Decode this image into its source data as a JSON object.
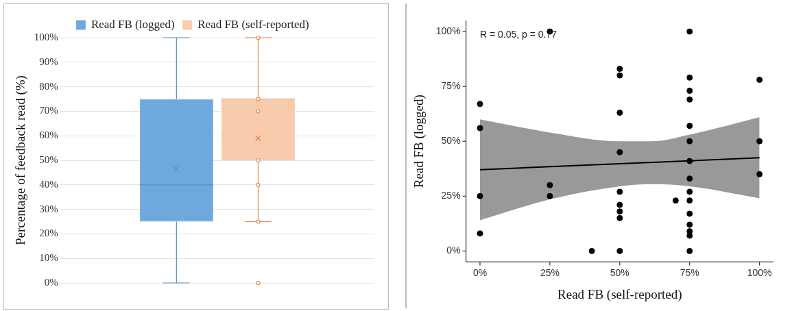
{
  "chart_data": [
    {
      "type": "box",
      "categories": [
        null
      ],
      "ylabel": "Percentage of feedback read (%)",
      "ylim": [
        0,
        100
      ],
      "yticks": [
        {
          "value": 0,
          "label": "0%"
        },
        {
          "value": 10,
          "label": "10%"
        },
        {
          "value": 20,
          "label": "20%"
        },
        {
          "value": 30,
          "label": "30%"
        },
        {
          "value": 40,
          "label": "40%"
        },
        {
          "value": 50,
          "label": "50%"
        },
        {
          "value": 60,
          "label": "60%"
        },
        {
          "value": 70,
          "label": "70%"
        },
        {
          "value": 80,
          "label": "80%"
        },
        {
          "value": 90,
          "label": "90%"
        },
        {
          "value": 100,
          "label": "100%"
        }
      ],
      "grid": "y",
      "legend": "top",
      "tick_labels": "y",
      "series": [
        {
          "name": "Read FB (logged)",
          "color": "#6fa8dc",
          "boxes": [
            {
              "low": 0,
              "q1": 25,
              "median": 40,
              "q3": 75,
              "high": 100,
              "mean": 46.5
            }
          ]
        },
        {
          "name": "Read FB (self-reported)",
          "color": "#f8cbad",
          "boxes": [
            {
              "low": 25,
              "q1": 50,
              "median": 75,
              "q3": 75,
              "high": 100,
              "mean": 59,
              "outliers": [
                100,
                75,
                70,
                50,
                40,
                25,
                0
              ]
            }
          ]
        }
      ]
    },
    {
      "type": "scatter",
      "xlabel": "Read FB (self-reported)",
      "ylabel": "Read FB (logged)",
      "xlim": [
        -5,
        105
      ],
      "ylim": [
        -5,
        105
      ],
      "xticks": [
        {
          "value": 0,
          "label": "0%"
        },
        {
          "value": 25,
          "label": "25%"
        },
        {
          "value": 50,
          "label": "50%"
        },
        {
          "value": 75,
          "label": "75%"
        },
        {
          "value": 100,
          "label": "100%"
        }
      ],
      "yticks": [
        {
          "value": 0,
          "label": "0%"
        },
        {
          "value": 25,
          "label": "25%"
        },
        {
          "value": 50,
          "label": "50%"
        },
        {
          "value": 75,
          "label": "75%"
        },
        {
          "value": 100,
          "label": "100%"
        }
      ],
      "grid": false,
      "legend": false,
      "annotations": [
        "R = 0.05, p = 0.77"
      ],
      "series": [
        {
          "type": "scatter",
          "color": "#000000",
          "marker": "circle",
          "x": [
            0,
            0,
            0,
            0,
            25,
            25,
            25,
            40,
            50,
            50,
            50,
            50,
            50,
            50,
            50,
            50,
            50,
            70,
            75,
            75,
            75,
            75,
            75,
            75,
            75,
            75,
            75,
            75,
            75,
            75,
            75,
            75,
            75,
            100,
            100,
            100
          ],
          "values": [
            67,
            56,
            25,
            8,
            100,
            30,
            25,
            0,
            83,
            80,
            63,
            45,
            27,
            21,
            18,
            15,
            0,
            23,
            100,
            79,
            73,
            69,
            57,
            50,
            41,
            33,
            27,
            23,
            17,
            12,
            9,
            7,
            0,
            78,
            50,
            35
          ]
        },
        {
          "type": "line",
          "color": "#000000",
          "line_style": "solid",
          "x": [
            0,
            25,
            50,
            62,
            75,
            100
          ],
          "values": [
            37,
            38.4,
            39.8,
            40.4,
            41.1,
            42.5
          ],
          "lower": [
            14,
            23.5,
            29.5,
            30.5,
            29.5,
            24
          ],
          "upper": [
            60,
            54,
            50,
            50,
            53,
            61
          ]
        }
      ]
    }
  ]
}
